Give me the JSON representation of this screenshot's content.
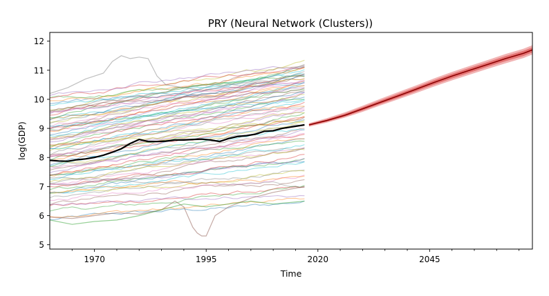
{
  "chart_data": {
    "type": "line",
    "title": "PRY (Neural Network (Clusters))",
    "xlabel": "Time",
    "ylabel": "log(GDP)",
    "xlim": [
      1960,
      2068
    ],
    "ylim": [
      4.85,
      12.3
    ],
    "x_ticks": [
      1970,
      1995,
      2020,
      2045
    ],
    "x_tick_labels": [
      "1970",
      "1995",
      "2020",
      "2045"
    ],
    "y_ticks": [
      5,
      6,
      7,
      8,
      9,
      10,
      11,
      12
    ],
    "y_tick_labels": [
      "5",
      "6",
      "7",
      "8",
      "9",
      "10",
      "11",
      "12"
    ],
    "grid": false,
    "legend": "none",
    "background_series": {
      "count": 80,
      "x_start": 1960,
      "x_end": 2017,
      "color_cycle": [
        "#1f77b4",
        "#ff7f0e",
        "#2ca02c",
        "#d62728",
        "#9467bd",
        "#8c564b",
        "#e377c2",
        "#7f7f7f",
        "#bcbd22",
        "#17becf"
      ],
      "start_levels": [
        5.85,
        5.95,
        6.1,
        6.35,
        6.4,
        6.45,
        6.55,
        6.6,
        6.7,
        6.75,
        6.8,
        6.85,
        6.9,
        6.95,
        7.0,
        7.05,
        7.1,
        7.15,
        7.2,
        7.25,
        7.3,
        7.35,
        7.4,
        7.45,
        7.5,
        7.55,
        7.6,
        7.65,
        7.7,
        7.75,
        7.8,
        7.85,
        7.9,
        7.95,
        8.0,
        8.05,
        8.1,
        8.15,
        8.2,
        8.25,
        8.3,
        8.35,
        8.4,
        8.45,
        8.5,
        8.55,
        8.6,
        8.65,
        8.7,
        8.75,
        8.8,
        8.85,
        8.9,
        8.95,
        9.0,
        9.05,
        9.1,
        9.15,
        9.2,
        9.25,
        9.3,
        9.35,
        9.4,
        9.45,
        9.5,
        9.55,
        9.6,
        9.65,
        9.7,
        9.75,
        9.8,
        9.9,
        10.0,
        10.1,
        10.2,
        9.65,
        8.9,
        7.3,
        8.4,
        9.1
      ],
      "end_levels": [
        6.5,
        6.6,
        7.0,
        6.9,
        6.7,
        7.2,
        7.4,
        7.6,
        7.5,
        7.8,
        7.9,
        7.3,
        8.0,
        8.1,
        7.9,
        8.2,
        8.3,
        8.4,
        8.3,
        8.5,
        8.6,
        8.7,
        8.6,
        8.8,
        8.9,
        9.0,
        8.8,
        9.1,
        9.2,
        9.0,
        9.3,
        9.4,
        9.5,
        9.3,
        9.6,
        9.4,
        9.7,
        9.8,
        9.6,
        9.9,
        10.0,
        9.8,
        10.1,
        9.9,
        10.2,
        10.3,
        10.1,
        10.4,
        10.2,
        10.5,
        10.3,
        10.6,
        10.4,
        10.7,
        10.5,
        10.8,
        10.6,
        10.9,
        10.7,
        11.0,
        10.8,
        10.5,
        11.1,
        10.9,
        10.6,
        11.2,
        10.7,
        10.8,
        11.3,
        10.9,
        10.6,
        11.0,
        10.8,
        11.1,
        11.2,
        10.4,
        9.7,
        7.0,
        9.2,
        10.0
      ],
      "special": [
        {
          "name": "volatile-high",
          "x": [
            1960,
            1964,
            1968,
            1972,
            1974,
            1976,
            1978,
            1980,
            1982,
            1984,
            1986,
            1990,
            1995,
            2000,
            2005,
            2010,
            2017
          ],
          "values": [
            10.2,
            10.4,
            10.7,
            10.9,
            11.3,
            11.5,
            11.4,
            11.45,
            11.4,
            10.8,
            10.5,
            10.4,
            10.3,
            10.5,
            10.6,
            10.8,
            11.2
          ]
        },
        {
          "name": "crash-series",
          "x": [
            1960,
            1965,
            1970,
            1975,
            1980,
            1985,
            1988,
            1990,
            1992,
            1993,
            1994,
            1995,
            1997,
            2000,
            2005,
            2010,
            2017
          ],
          "values": [
            5.95,
            5.9,
            6.0,
            6.1,
            6.05,
            6.2,
            6.5,
            6.3,
            5.6,
            5.4,
            5.3,
            5.3,
            6.0,
            6.3,
            6.6,
            6.8,
            7.0
          ]
        },
        {
          "name": "low-green",
          "x": [
            1960,
            1965,
            1970,
            1975,
            1980,
            1985,
            1990,
            1995,
            2000,
            2005,
            2010,
            2017
          ],
          "values": [
            5.85,
            5.7,
            5.8,
            5.85,
            6.0,
            6.2,
            6.4,
            6.3,
            6.4,
            6.5,
            6.4,
            6.5
          ]
        }
      ]
    },
    "series": [
      {
        "name": "",
        "color": "#000000",
        "x": [
          1960,
          1962,
          1964,
          1966,
          1968,
          1970,
          1972,
          1974,
          1976,
          1978,
          1980,
          1982,
          1984,
          1986,
          1988,
          1990,
          1992,
          1994,
          1996,
          1998,
          2000,
          2002,
          2004,
          2006,
          2008,
          2010,
          2012,
          2014,
          2017
        ],
        "y": [
          7.9,
          7.88,
          7.87,
          7.92,
          7.95,
          8.0,
          8.08,
          8.18,
          8.3,
          8.48,
          8.62,
          8.55,
          8.55,
          8.56,
          8.6,
          8.6,
          8.62,
          8.63,
          8.6,
          8.55,
          8.65,
          8.72,
          8.75,
          8.8,
          8.9,
          8.92,
          9.0,
          9.05,
          9.12
        ]
      },
      {
        "name": "",
        "color": "#d62728",
        "x": [
          2018,
          2022,
          2026,
          2030,
          2034,
          2038,
          2042,
          2046,
          2050,
          2054,
          2058,
          2062,
          2066,
          2068
        ],
        "y": [
          9.12,
          9.27,
          9.45,
          9.67,
          9.9,
          10.12,
          10.35,
          10.58,
          10.8,
          11.0,
          11.2,
          11.4,
          11.58,
          11.7
        ],
        "band_upper": [
          9.18,
          9.35,
          9.55,
          9.78,
          10.02,
          10.25,
          10.48,
          10.72,
          10.94,
          11.15,
          11.35,
          11.56,
          11.74,
          11.86
        ],
        "band_lower": [
          9.06,
          9.2,
          9.37,
          9.57,
          9.79,
          10.0,
          10.22,
          10.44,
          10.65,
          10.85,
          11.05,
          11.24,
          11.42,
          11.54
        ]
      }
    ]
  }
}
